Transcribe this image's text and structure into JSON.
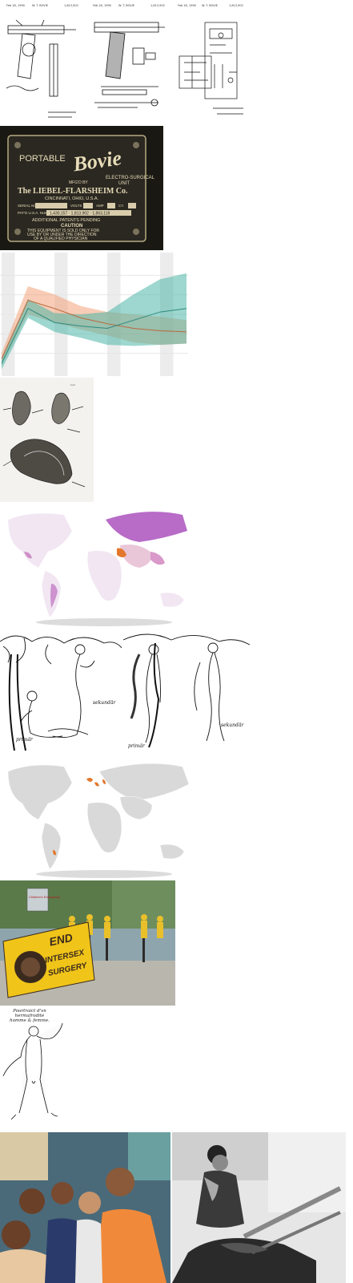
{
  "gallery": {
    "patent_sheets": [
      {
        "date": "Feb 18, 1990",
        "number": "1,813,902",
        "inventor": "W. T. BOVIE"
      },
      {
        "date": "Feb 18, 1990",
        "number": "1,813,902",
        "inventor": "W. T. BOVIE"
      },
      {
        "date": "Feb 18, 1990",
        "number": "1,813,902",
        "inventor": "W. T. BOVIE"
      }
    ],
    "bovie_plate": {
      "line1": "PORTABLE",
      "brand": "Bovie",
      "line2": "ELECTRO-SURGICAL",
      "line3": "UNIT",
      "mfg": "MFG'D BY",
      "maker": "The LIEBEL-FLARSHEIM Co.",
      "city": "CINCINNATI, OHIO, U.S.A.",
      "serial_label": "SERIAL NO.",
      "volts_label": "VOLTS",
      "amp_label": "AMP",
      "cy_label": "CY.",
      "pat_label": "PAT'D U.S.A. NUMBERS",
      "patents": "1,430,157 · 1,813,902 · 1,863,118",
      "pending": "ADDITIONAL PATENTS PENDING",
      "caution": "CAUTION",
      "caution_text_1": "THIS EQUIPMENT IS SOLD ONLY FOR",
      "caution_text_2": "USE BY OR UNDER THE DIRECTION",
      "caution_text_3": "OF A QUALIFIED PHYSICIAN"
    },
    "engraving_caption": {
      "line1": "Pourtraict d'vn hermafrodite",
      "line2": "homme & femme."
    },
    "sketch_labels": {
      "left_1": "primär",
      "left_2": "sekundär",
      "right_1": "primär",
      "right_2": "sekundär"
    },
    "banner_text": {
      "word1": "END",
      "word2": "INTERSEX",
      "word3": "SURGERY"
    },
    "hospital_sign": "Children's Emergency"
  },
  "colors": {
    "band_orange": "#f2a27a",
    "band_teal": "#4db6a8",
    "map_purple": "#b86bc7",
    "map_orange": "#e3782d",
    "banner_yellow": "#f0c419",
    "banner_dark": "#3a2a1e"
  },
  "chart_data": {
    "type": "area",
    "title": "",
    "xlabel": "",
    "ylabel": "",
    "series": [
      {
        "values": [
          0.12,
          0.62,
          0.55,
          0.47,
          0.42,
          0.38,
          0.36,
          0.35
        ]
      },
      {
        "values": [
          0.08,
          0.55,
          0.43,
          0.4,
          0.38,
          0.45,
          0.52,
          0.55
        ]
      }
    ]
  }
}
